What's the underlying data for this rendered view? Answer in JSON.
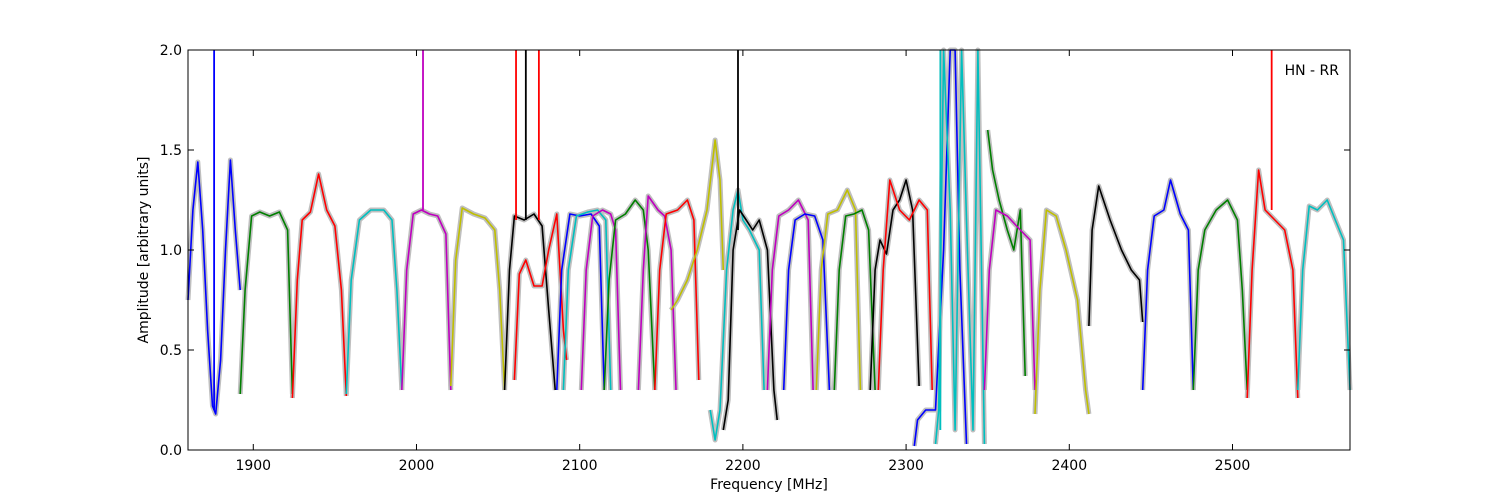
{
  "chart_data": {
    "type": "line",
    "title": "",
    "xlabel": "Frequency [MHz]",
    "ylabel": "Amplitude [arbitrary units]",
    "annotation": "HN - RR",
    "xlim": [
      1860,
      2572
    ],
    "ylim": [
      0.0,
      2.0
    ],
    "xticks": [
      1900,
      2000,
      2100,
      2200,
      2300,
      2400,
      2500
    ],
    "yticks": [
      0.0,
      0.5,
      1.0,
      1.5,
      2.0
    ],
    "xtick_labels": [
      "1900",
      "2000",
      "2100",
      "2200",
      "2300",
      "2400",
      "2500"
    ],
    "ytick_labels": [
      "0.0",
      "0.5",
      "1.0",
      "1.5",
      "2.0"
    ],
    "grid": false,
    "background_color": "#bfbfbf",
    "series": [
      {
        "color": "#0000ff",
        "x": [
          1860,
          1863,
          1866,
          1869,
          1872,
          1875,
          1877,
          1880,
          1883,
          1886,
          1889,
          1892
        ],
        "y": [
          0.75,
          1.2,
          1.44,
          1.1,
          0.6,
          0.22,
          0.18,
          0.45,
          1.0,
          1.45,
          1.1,
          0.8
        ]
      },
      {
        "color": "#007f00",
        "x": [
          1892,
          1895,
          1899,
          1904,
          1910,
          1916,
          1921,
          1924
        ],
        "y": [
          0.28,
          0.8,
          1.17,
          1.19,
          1.17,
          1.19,
          1.1,
          0.28
        ]
      },
      {
        "color": "#ff0000",
        "x": [
          1924,
          1927,
          1930,
          1935,
          1940,
          1945,
          1950,
          1954,
          1957
        ],
        "y": [
          0.26,
          0.85,
          1.15,
          1.19,
          1.38,
          1.2,
          1.12,
          0.8,
          0.27
        ]
      },
      {
        "color": "#00bfbf",
        "x": [
          1957,
          1960,
          1965,
          1972,
          1980,
          1985,
          1988,
          1991
        ],
        "y": [
          0.28,
          0.85,
          1.15,
          1.2,
          1.2,
          1.15,
          0.8,
          0.3
        ]
      },
      {
        "color": "#bf00bf",
        "x": [
          1991,
          1994,
          1998,
          2003,
          2008,
          2013,
          2018,
          2021
        ],
        "y": [
          0.3,
          0.9,
          1.18,
          1.2,
          1.18,
          1.17,
          1.08,
          0.3
        ]
      },
      {
        "color": "#bfbf00",
        "x": [
          2021,
          2024,
          2028,
          2035,
          2042,
          2048,
          2051,
          2054
        ],
        "y": [
          0.32,
          0.95,
          1.21,
          1.18,
          1.16,
          1.1,
          0.8,
          0.3
        ]
      },
      {
        "color": "#000000",
        "x": [
          2054,
          2057,
          2060,
          2066,
          2072,
          2077,
          2081,
          2085
        ],
        "y": [
          0.3,
          0.9,
          1.17,
          1.15,
          1.18,
          1.12,
          0.7,
          0.3
        ]
      },
      {
        "color": "#ff0000",
        "x": [
          2060,
          2063,
          2067,
          2072,
          2077,
          2081,
          2086,
          2090,
          2092
        ],
        "y": [
          0.35,
          0.88,
          0.95,
          0.82,
          0.82,
          1.0,
          1.18,
          0.6,
          0.45
        ]
      },
      {
        "color": "#0000ff",
        "x": [
          2086,
          2089,
          2094,
          2100,
          2107,
          2112,
          2115
        ],
        "y": [
          0.3,
          0.9,
          1.18,
          1.17,
          1.18,
          1.12,
          0.3
        ]
      },
      {
        "color": "#00bfbf",
        "x": [
          2090,
          2093,
          2098,
          2105,
          2111,
          2116,
          2119
        ],
        "y": [
          0.3,
          0.9,
          1.17,
          1.19,
          1.2,
          1.15,
          0.3
        ]
      },
      {
        "color": "#bf00bf",
        "x": [
          2101,
          2104,
          2108,
          2114,
          2119,
          2122,
          2125
        ],
        "y": [
          0.3,
          0.9,
          1.17,
          1.2,
          1.18,
          1.1,
          0.3
        ]
      },
      {
        "color": "#007f00",
        "x": [
          2115,
          2118,
          2122,
          2128,
          2134,
          2139,
          2142,
          2146
        ],
        "y": [
          0.3,
          0.85,
          1.15,
          1.18,
          1.25,
          1.2,
          1.0,
          0.3
        ]
      },
      {
        "color": "#bf00bf",
        "x": [
          2136,
          2139,
          2142,
          2148,
          2152,
          2156,
          2159
        ],
        "y": [
          0.3,
          0.9,
          1.27,
          1.2,
          1.17,
          1.0,
          0.3
        ]
      },
      {
        "color": "#ff0000",
        "x": [
          2146,
          2149,
          2153,
          2160,
          2166,
          2170,
          2173
        ],
        "y": [
          0.3,
          0.9,
          1.18,
          1.2,
          1.25,
          1.15,
          0.35
        ]
      },
      {
        "color": "#bfbf00",
        "x": [
          2156,
          2160,
          2166,
          2172,
          2178,
          2183,
          2186,
          2188
        ],
        "y": [
          0.7,
          0.75,
          0.85,
          1.0,
          1.2,
          1.55,
          1.35,
          0.9
        ]
      },
      {
        "color": "#00bfbf",
        "x": [
          2180,
          2183,
          2186,
          2190,
          2194,
          2197,
          2200,
          2204,
          2210,
          2213
        ],
        "y": [
          0.2,
          0.05,
          0.2,
          0.9,
          1.2,
          1.3,
          1.15,
          1.1,
          1.0,
          0.3
        ]
      },
      {
        "color": "#000000",
        "x": [
          2188,
          2191,
          2194,
          2198,
          2202,
          2206,
          2210,
          2215,
          2219,
          2221
        ],
        "y": [
          0.1,
          0.25,
          1.0,
          1.2,
          1.15,
          1.1,
          1.15,
          1.0,
          0.3,
          0.15
        ]
      },
      {
        "color": "#bf00bf",
        "x": [
          2215,
          2218,
          2222,
          2228,
          2234,
          2240,
          2243
        ],
        "y": [
          0.3,
          0.9,
          1.17,
          1.2,
          1.25,
          1.15,
          0.3
        ]
      },
      {
        "color": "#0000ff",
        "x": [
          2225,
          2228,
          2232,
          2238,
          2244,
          2249,
          2253
        ],
        "y": [
          0.3,
          0.9,
          1.15,
          1.18,
          1.17,
          1.05,
          0.3
        ]
      },
      {
        "color": "#bfbf00",
        "x": [
          2245,
          2248,
          2252,
          2258,
          2264,
          2269,
          2272
        ],
        "y": [
          0.3,
          0.9,
          1.18,
          1.2,
          1.3,
          1.2,
          0.3
        ]
      },
      {
        "color": "#007f00",
        "x": [
          2256,
          2259,
          2263,
          2268,
          2273,
          2277,
          2281
        ],
        "y": [
          0.3,
          0.9,
          1.17,
          1.18,
          1.2,
          1.1,
          0.3
        ]
      },
      {
        "color": "#000000",
        "x": [
          2278,
          2281,
          2284,
          2288,
          2292,
          2296,
          2300,
          2304,
          2308
        ],
        "y": [
          0.3,
          0.9,
          1.05,
          0.98,
          1.2,
          1.25,
          1.35,
          1.2,
          0.32
        ]
      },
      {
        "color": "#ff0000",
        "x": [
          2283,
          2286,
          2290,
          2296,
          2302,
          2308,
          2313,
          2316
        ],
        "y": [
          0.3,
          0.9,
          1.35,
          1.2,
          1.15,
          1.25,
          1.2,
          0.3
        ]
      },
      {
        "color": "#0000ff",
        "x": [
          2305,
          2307,
          2312,
          2318,
          2323,
          2327,
          2330,
          2333,
          2337
        ],
        "y": [
          0.02,
          0.15,
          0.2,
          0.2,
          1.0,
          2.0,
          2.0,
          0.9,
          0.03
        ]
      },
      {
        "color": "#00bfbf",
        "x": [
          2318,
          2320,
          2323,
          2327,
          2330,
          2334,
          2337,
          2341,
          2344,
          2348
        ],
        "y": [
          0.03,
          0.2,
          2.0,
          1.2,
          0.1,
          2.0,
          1.15,
          0.1,
          2.0,
          0.03
        ]
      },
      {
        "color": "#007f00",
        "x": [
          2350,
          2353,
          2357,
          2362,
          2366,
          2370,
          2373
        ],
        "y": [
          1.6,
          1.4,
          1.25,
          1.1,
          1.0,
          1.2,
          0.37
        ]
      },
      {
        "color": "#bf00bf",
        "x": [
          2348,
          2351,
          2355,
          2362,
          2370,
          2376,
          2379
        ],
        "y": [
          0.3,
          0.9,
          1.2,
          1.17,
          1.1,
          1.05,
          0.3
        ]
      },
      {
        "color": "#bfbf00",
        "x": [
          2379,
          2382,
          2386,
          2392,
          2398,
          2405,
          2410,
          2412
        ],
        "y": [
          0.18,
          0.8,
          1.2,
          1.17,
          1.0,
          0.75,
          0.3,
          0.18
        ]
      },
      {
        "color": "#000000",
        "x": [
          2412,
          2414,
          2418,
          2425,
          2432,
          2438,
          2443,
          2445
        ],
        "y": [
          0.62,
          1.1,
          1.32,
          1.15,
          1.0,
          0.9,
          0.85,
          0.64
        ]
      },
      {
        "color": "#0000ff",
        "x": [
          2445,
          2448,
          2452,
          2458,
          2462,
          2468,
          2473,
          2476
        ],
        "y": [
          0.3,
          0.9,
          1.17,
          1.2,
          1.35,
          1.18,
          1.1,
          0.3
        ]
      },
      {
        "color": "#007f00",
        "x": [
          2476,
          2479,
          2483,
          2490,
          2497,
          2503,
          2506,
          2509
        ],
        "y": [
          0.3,
          0.9,
          1.1,
          1.2,
          1.25,
          1.15,
          0.8,
          0.3
        ]
      },
      {
        "color": "#ff0000",
        "x": [
          2509,
          2512,
          2516,
          2520,
          2526,
          2532,
          2537,
          2540
        ],
        "y": [
          0.26,
          0.9,
          1.4,
          1.2,
          1.15,
          1.1,
          0.9,
          0.26
        ]
      },
      {
        "color": "#00bfbf",
        "x": [
          2540,
          2543,
          2547,
          2552,
          2558,
          2563,
          2568,
          2572
        ],
        "y": [
          0.3,
          0.9,
          1.22,
          1.2,
          1.25,
          1.15,
          1.05,
          0.3
        ]
      }
    ],
    "spikes": [
      {
        "color": "#0000ff",
        "x": 1876,
        "y0": 0.2,
        "y1": 2.0
      },
      {
        "color": "#bf00bf",
        "x": 2004,
        "y0": 1.2,
        "y1": 2.0
      },
      {
        "color": "#ff0000",
        "x": 2061,
        "y0": 1.15,
        "y1": 2.0
      },
      {
        "color": "#000000",
        "x": 2067,
        "y0": 1.15,
        "y1": 2.0
      },
      {
        "color": "#ff0000",
        "x": 2075,
        "y0": 1.15,
        "y1": 2.0
      },
      {
        "color": "#000000",
        "x": 2197,
        "y0": 1.1,
        "y1": 2.0
      },
      {
        "color": "#00bfbf",
        "x": 2321,
        "y0": 0.1,
        "y1": 2.0
      },
      {
        "color": "#ff0000",
        "x": 2524,
        "y0": 1.2,
        "y1": 2.0
      }
    ]
  }
}
